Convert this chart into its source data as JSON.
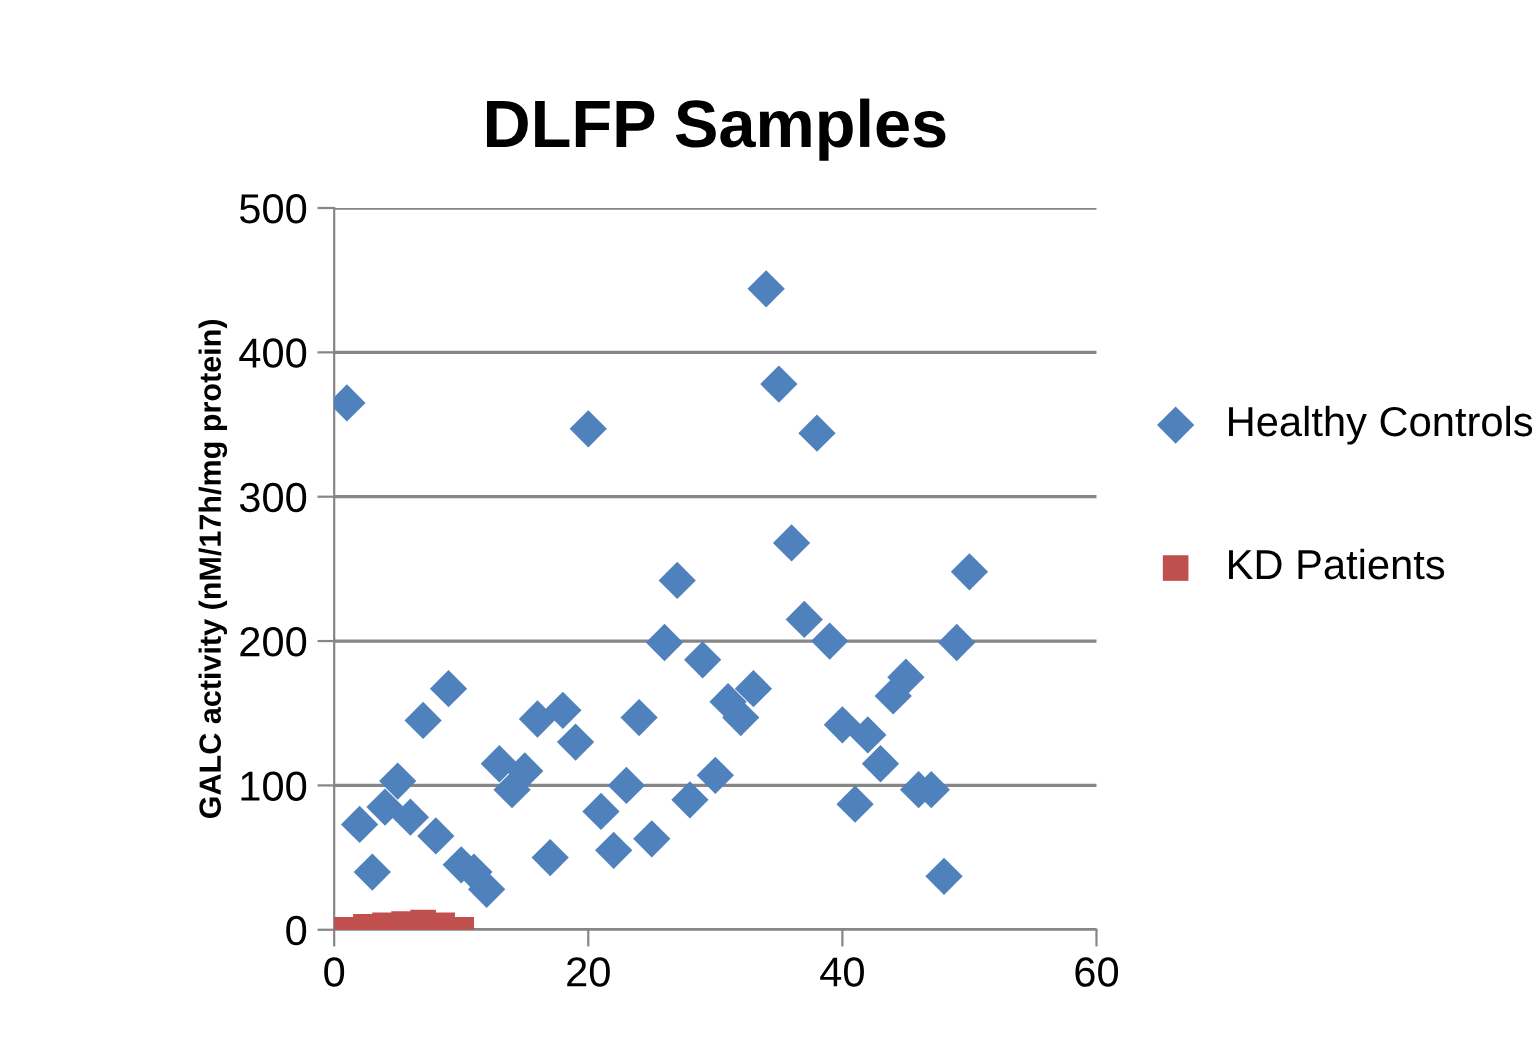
{
  "chart_data": {
    "type": "scatter",
    "title": "DLFP Samples",
    "ylabel": "GALC activity (nM/17h/mg protein)",
    "xlim": [
      0,
      60
    ],
    "xticks": [
      0,
      20,
      40,
      60
    ],
    "ylim": [
      0,
      500
    ],
    "yticks": [
      0,
      100,
      200,
      300,
      400,
      500
    ],
    "grid": "y",
    "legend": "right",
    "series": [
      {
        "name": "Healthy Controls",
        "color": "#4f81bd",
        "marker": "diamond",
        "x": [
          1,
          2,
          3,
          4,
          5,
          6,
          7,
          8,
          9,
          10,
          11,
          12,
          13,
          14,
          15,
          16,
          17,
          18,
          19,
          20,
          21,
          22,
          23,
          24,
          25,
          26,
          27,
          28,
          29,
          30,
          31,
          32,
          33,
          34,
          35,
          36,
          37,
          38,
          39,
          40,
          41,
          42,
          43,
          44,
          45,
          46,
          47,
          48,
          49,
          50
        ],
        "values": [
          365,
          73,
          40,
          85,
          103,
          78,
          145,
          65,
          167,
          45,
          40,
          28,
          115,
          97,
          110,
          146,
          50,
          152,
          130,
          347,
          82,
          55,
          100,
          147,
          63,
          199,
          242,
          90,
          187,
          107,
          158,
          147,
          167,
          444,
          378,
          268,
          215,
          344,
          200,
          142,
          87,
          135,
          115,
          162,
          175,
          97,
          97,
          37,
          199,
          248
        ]
      },
      {
        "name": "KD Patients",
        "color": "#c0504d",
        "marker": "square",
        "x": [
          1,
          2.5,
          4,
          5.5,
          7,
          8.5,
          10
        ],
        "values": [
          0,
          2,
          3,
          4,
          5,
          3,
          0
        ]
      }
    ]
  }
}
